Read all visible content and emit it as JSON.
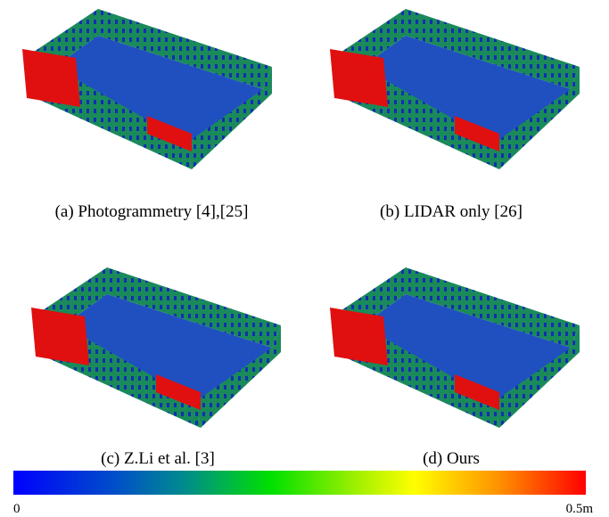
{
  "panels": [
    {
      "caption": "(a) Photogrammetry [4],[25]"
    },
    {
      "caption": "(b) LIDAR only [26]"
    },
    {
      "caption": "(c) Z.Li et al. [3]"
    },
    {
      "caption": "(d) Ours"
    }
  ],
  "colorbar": {
    "min_label": "0",
    "max_label": "0.5m"
  }
}
